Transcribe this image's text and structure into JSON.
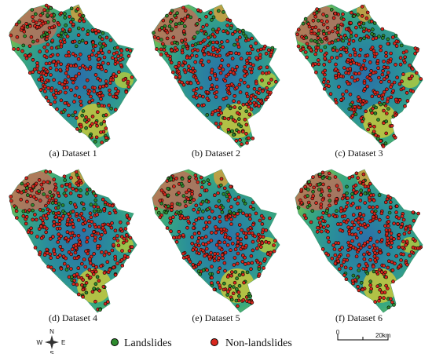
{
  "panels": [
    {
      "caption": "(a) Dataset 1"
    },
    {
      "caption": "(b) Dataset 2"
    },
    {
      "caption": "(c) Dataset 3"
    },
    {
      "caption": "(d) Dataset 4"
    },
    {
      "caption": "(e) Dataset 5"
    },
    {
      "caption": "(f) Dataset 6"
    }
  ],
  "legend": {
    "items": [
      {
        "label": "Landslides"
      },
      {
        "label": "Non-landslides"
      }
    ]
  },
  "scale_bar": {
    "labels": [
      "0",
      "20km"
    ]
  },
  "north_arrow": {
    "labels": [
      "N",
      "S",
      "W",
      "E"
    ]
  }
}
